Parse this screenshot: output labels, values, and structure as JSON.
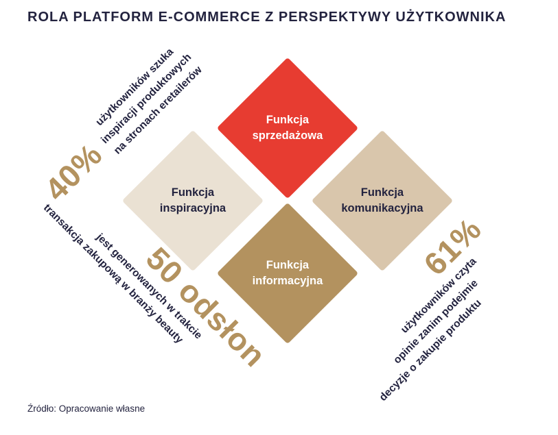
{
  "title": "ROLA PLATFORM E-COMMERCE Z PERSPEKTYWY UŻYTKOWNIKA",
  "colors": {
    "navy": "#23233f",
    "red": "#e73c31",
    "beige": "#eae1d3",
    "tan": "#d9c6ac",
    "gold": "#b3925f",
    "white": "#ffffff"
  },
  "diamonds": {
    "top": {
      "line1": "Funkcja",
      "line2": "sprzedażowa"
    },
    "left": {
      "line1": "Funkcja",
      "line2": "inspiracyjna"
    },
    "right": {
      "line1": "Funkcja",
      "line2": "komunikacyjna"
    },
    "bottom": {
      "line1": "Funkcja",
      "line2": "informacyjna"
    }
  },
  "annotations": {
    "top_left": {
      "stat": "40%",
      "lines": [
        "użytkowników szuka",
        "inspiracji produktowych",
        "na stronach eretailerów"
      ]
    },
    "bottom_left": {
      "stat": "50 odsłon",
      "lines": [
        "jest generowanych w trakcie",
        "transakcja zakupową w branży beauty"
      ]
    },
    "bottom_right": {
      "stat": "61%",
      "lines": [
        "użytkowników czyta",
        "opinie zanim podejmie",
        "decyzje o zakupie produktu"
      ]
    }
  },
  "footer": "Źródło: Opracowanie własne"
}
